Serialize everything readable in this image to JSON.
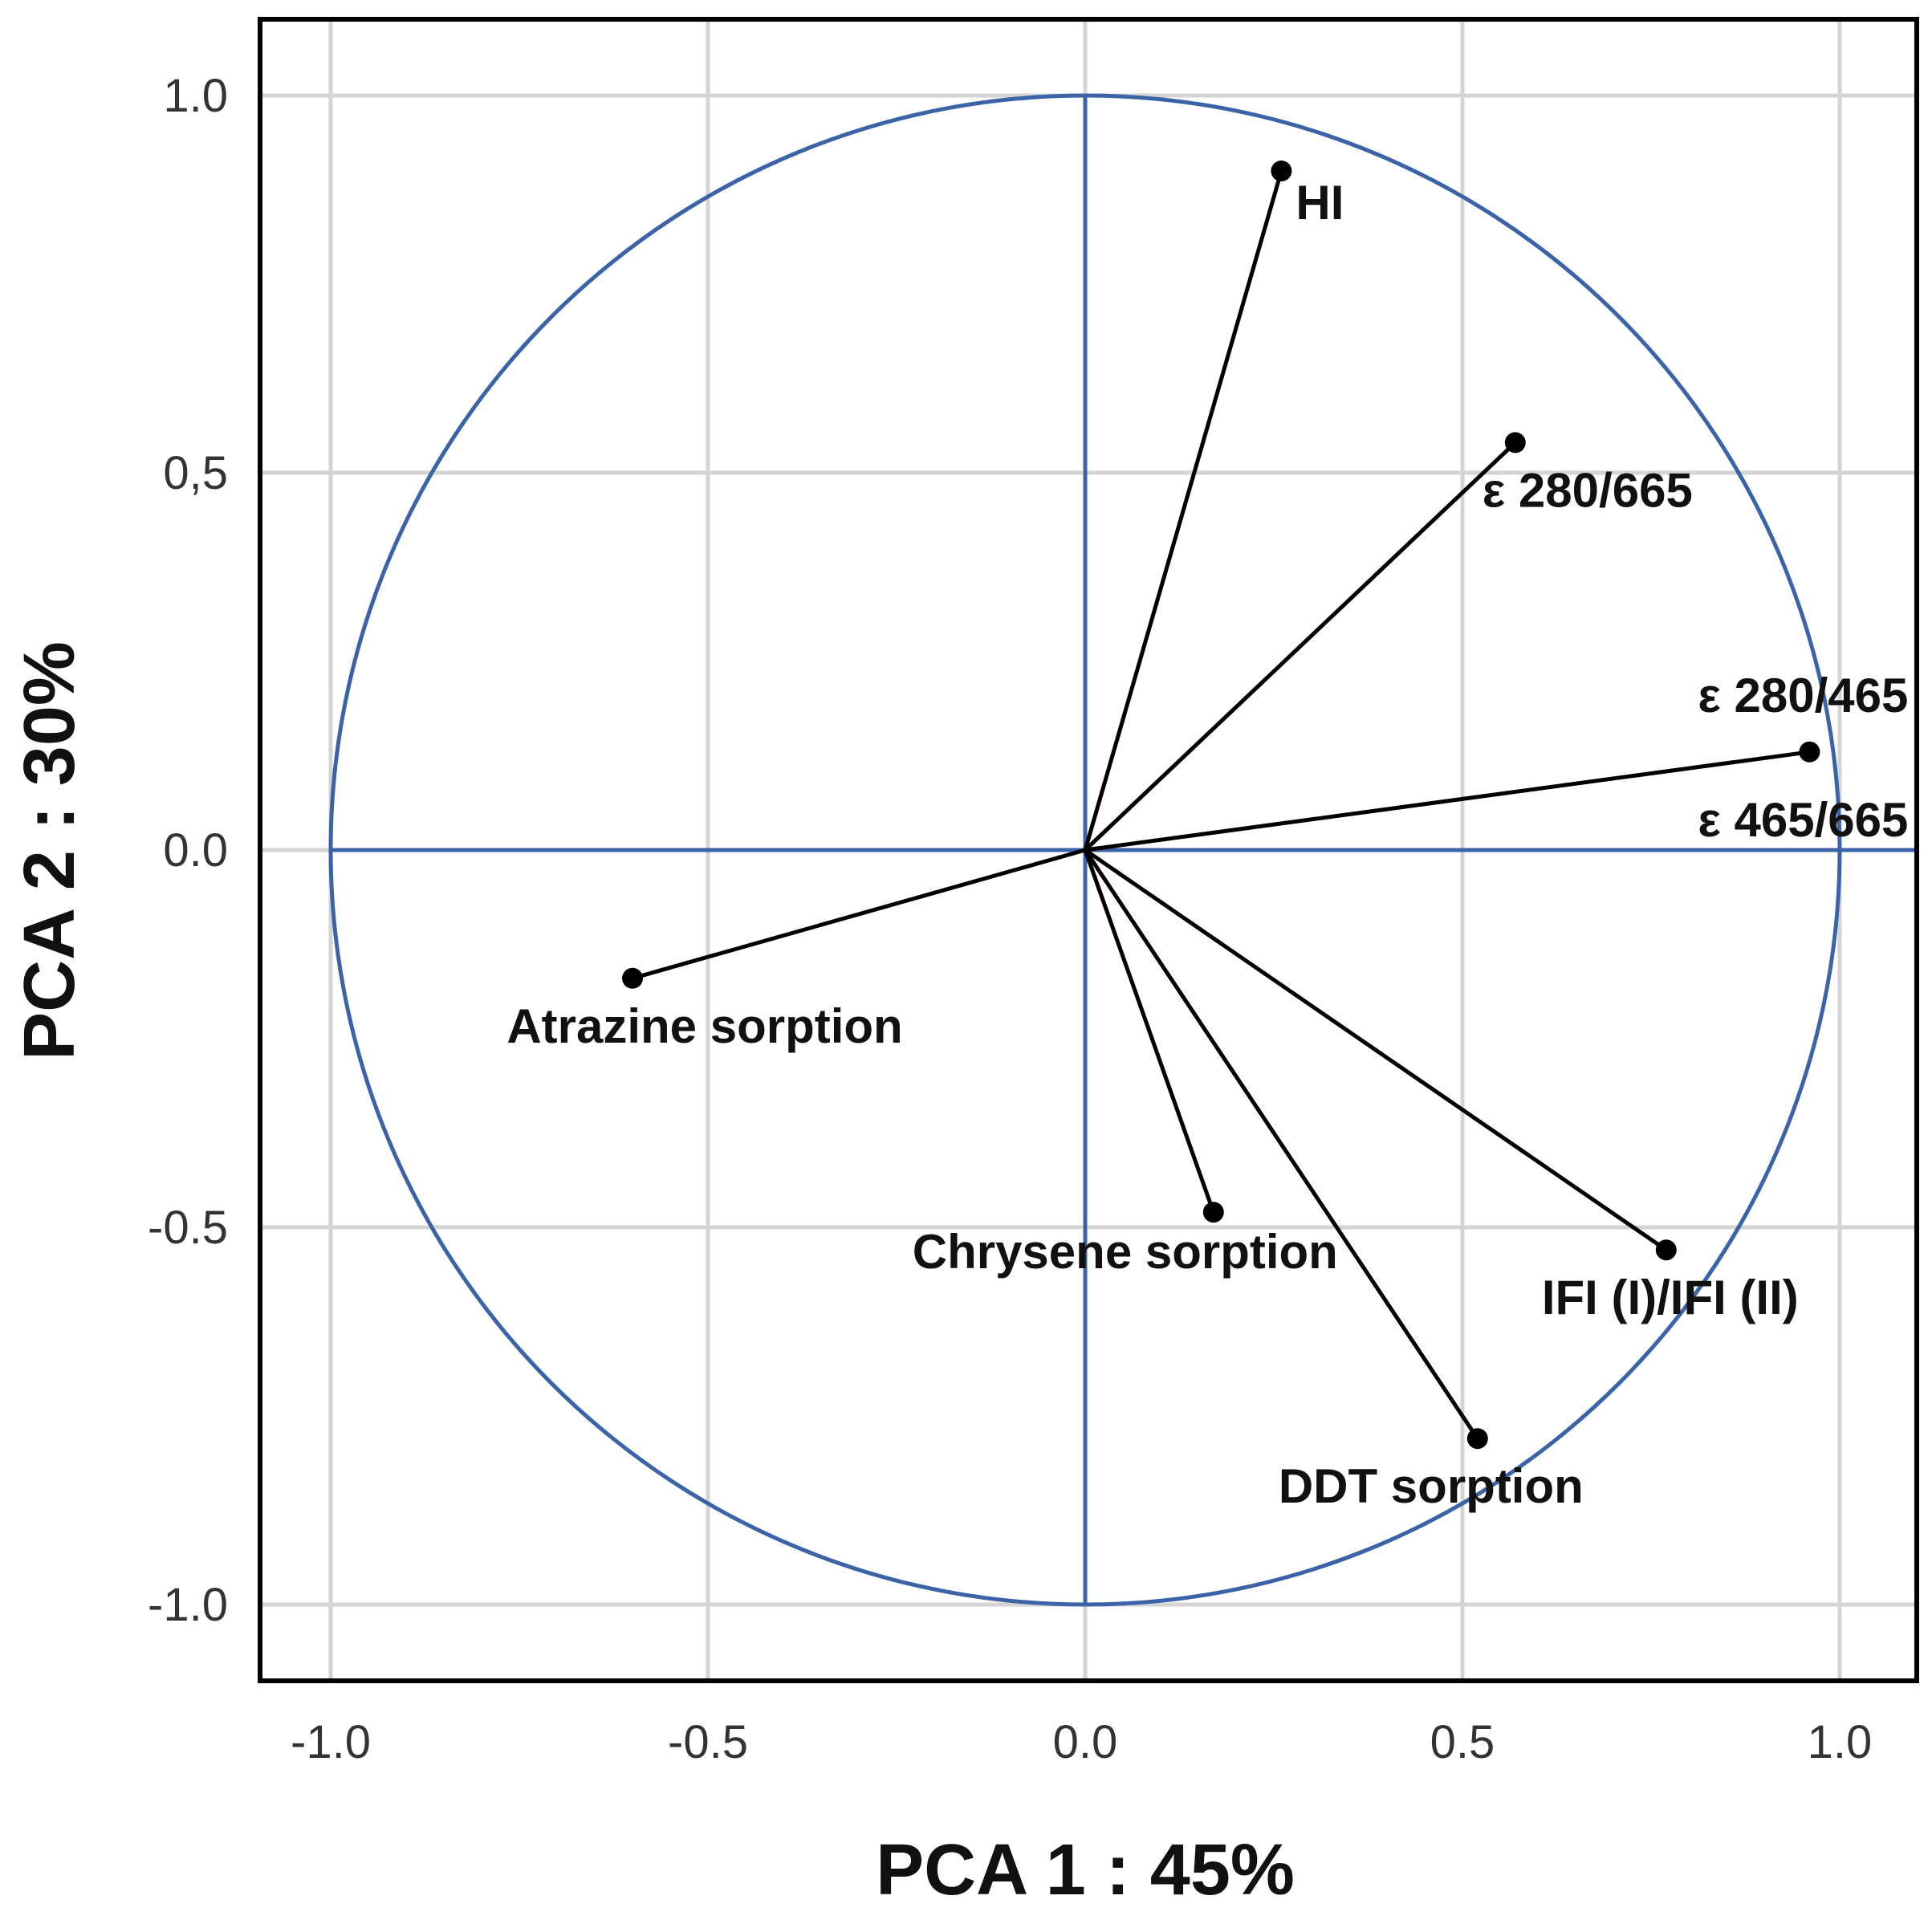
{
  "chart_data": {
    "type": "scatter",
    "subtype": "pca-correlation-circle",
    "title": "",
    "xlabel": "PCA 1 : 45%",
    "ylabel": "PCA 2 : 30%",
    "xlim": [
      -1.1,
      1.1
    ],
    "ylim": [
      -1.1,
      1.1
    ],
    "xticks": [
      -1.0,
      -0.5,
      0.0,
      0.5,
      1.0
    ],
    "yticks": [
      -1.0,
      -0.5,
      0.0,
      0.5,
      1.0
    ],
    "xtick_labels": [
      "-1.0",
      "-0.5",
      "0.0",
      "0.5",
      "1.0"
    ],
    "ytick_labels": [
      "-1.0",
      "-0.5",
      "0.0",
      "0,5",
      "1.0"
    ],
    "grid": true,
    "unit_circle": true,
    "colors": {
      "circle": "#3b64a8",
      "vector": "#000000",
      "grid": "#d4d4d4",
      "frame": "#000000"
    },
    "vectors": [
      {
        "name": "HI",
        "x": 0.26,
        "y": 0.9,
        "label_pos": "right-below"
      },
      {
        "name": "ε 280/665",
        "x": 0.57,
        "y": 0.54,
        "label_pos": "below"
      },
      {
        "name": "ε 280/465",
        "x": 0.96,
        "y": 0.13,
        "label_pos": "above"
      },
      {
        "name": "ε 465/665",
        "x": 0.96,
        "y": 0.13,
        "label_pos": "below"
      },
      {
        "name": "Atrazine sorption",
        "x": -0.6,
        "y": -0.17,
        "label_pos": "below"
      },
      {
        "name": "Chrysene sorption",
        "x": 0.17,
        "y": -0.48,
        "label_pos": "below"
      },
      {
        "name": "IFI (I)/IFI (II)",
        "x": 0.77,
        "y": -0.53,
        "label_pos": "below"
      },
      {
        "name": "DDT sorption",
        "x": 0.52,
        "y": -0.78,
        "label_pos": "below"
      }
    ]
  }
}
